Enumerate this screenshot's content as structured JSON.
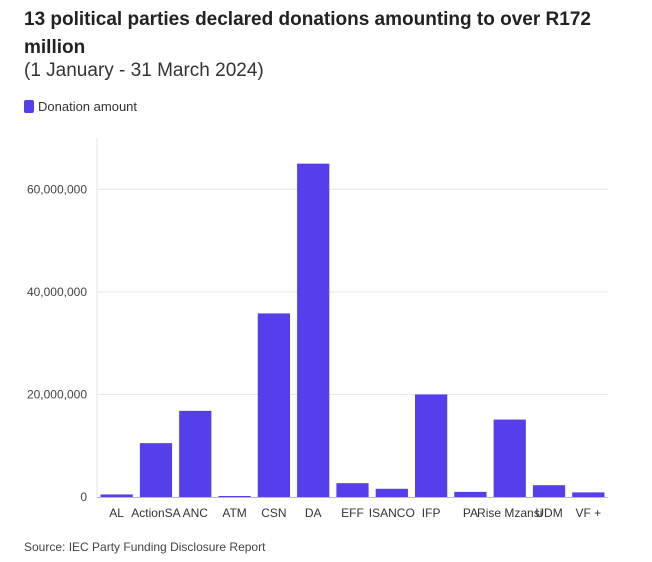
{
  "header": {
    "title": "13 political parties declared donations amounting to over R172 million",
    "subtitle": "(1 January - 31 March 2024)"
  },
  "legend": {
    "label": "Donation amount",
    "color": "#553fea"
  },
  "footer": {
    "source": "Source: IEC Party Funding Disclosure Report"
  },
  "chart_data": {
    "type": "bar",
    "categories": [
      "AL",
      "ActionSA",
      "ANC",
      "ATM",
      "CSN",
      "DA",
      "EFF",
      "ISANCO",
      "IFP",
      "PA",
      "Rise Mzansi",
      "UDM",
      "VF +"
    ],
    "series": [
      {
        "name": "Donation amount",
        "color": "#553fea",
        "values": [
          500000,
          10500000,
          16800000,
          150000,
          35800000,
          65000000,
          2700000,
          1600000,
          20000000,
          1000000,
          15100000,
          2300000,
          900000
        ]
      }
    ],
    "yticks": [
      0,
      20000000,
      40000000,
      60000000
    ],
    "ytick_labels": [
      "0",
      "20,000,000",
      "40,000,000",
      "60,000,000"
    ],
    "ylim": [
      0,
      70000000
    ],
    "grid": true,
    "xlabel": "",
    "ylabel": ""
  }
}
